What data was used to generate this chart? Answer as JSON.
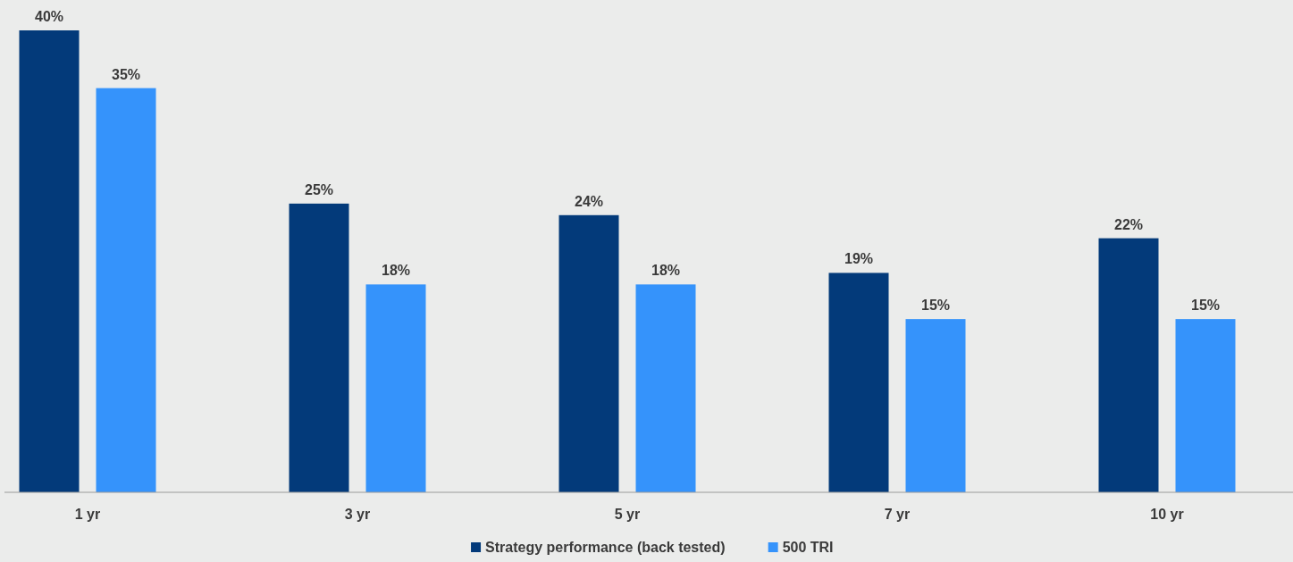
{
  "chart_data": {
    "type": "bar",
    "categories": [
      "1 yr",
      "3 yr",
      "5 yr",
      "7 yr",
      "10 yr"
    ],
    "series": [
      {
        "name": "Strategy performance (back tested)",
        "color": "#033a7a",
        "values": [
          40,
          25,
          24,
          19,
          22
        ],
        "value_labels": [
          "40%",
          "25%",
          "24%",
          "19%",
          "22%"
        ]
      },
      {
        "name": "500 TRI",
        "color": "#3593fb",
        "values": [
          35,
          18,
          18,
          15,
          15
        ],
        "value_labels": [
          "35%",
          "18%",
          "18%",
          "15%",
          "15%"
        ]
      }
    ],
    "legend": "bottom"
  }
}
